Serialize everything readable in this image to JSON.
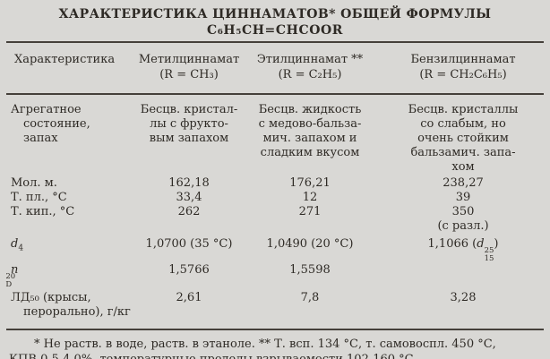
{
  "title": {
    "line1": "ХАРАКТЕРИСТИКА ЦИННАМАТОВ* ОБЩЕЙ ФОРМУЛЫ",
    "line2": "C₆H₅CH=CHCOOR"
  },
  "table": {
    "header": {
      "characteristic": "Характеристика",
      "cols": [
        {
          "name": "Метилциннамат",
          "r": "(R = CH₃)"
        },
        {
          "name": "Этилциннамат **",
          "r": "(R = C₂H₅)"
        },
        {
          "name": "Бензилциннамат",
          "r": "(R = CH₂C₆H₅)"
        }
      ]
    },
    "state_row": {
      "label": "Агрегатное\nсостояние,\nзапах",
      "methyl": "Бесцв. кристал-\nлы с фрукто-\nвым запахом",
      "ethyl": "Бесцв. жидкость\nс медово-бальза-\nмич. запахом и\nсладким вкусом",
      "benzyl": "Бесцв. кристаллы\nсо слабым, но\nочень стойким\nбальзамич. запа-\nхом"
    },
    "mol_row": {
      "label": "Мол. м.",
      "methyl": "162,18",
      "ethyl": "176,21",
      "benzyl": "238,27"
    },
    "tpl_row": {
      "label": "Т. пл., °С",
      "methyl": "33,4",
      "ethyl": "12",
      "benzyl": "39"
    },
    "tkip_row": {
      "label": "Т. кип., °С",
      "methyl": "262",
      "ethyl": "271",
      "benzyl": "350\n(с разл.)"
    },
    "d_row": {
      "label_base": "d",
      "label_sub": "4",
      "methyl": "1,0700 (35 °С)",
      "ethyl": "1,0490 (20 °С)",
      "benzyl_prefix": "1,1066 (",
      "benzyl_base": "d",
      "benzyl_sup": "25",
      "benzyl_sub": "15",
      "benzyl_suffix": ")"
    },
    "n_row": {
      "label_base": "n",
      "label_sup": "20",
      "label_sub": "D",
      "methyl": "1,5766",
      "ethyl": "1,5598",
      "benzyl": ""
    },
    "ld_row": {
      "label": "ЛД₅₀ (крысы,\nперорально), г/кг",
      "methyl": "2,61",
      "ethyl": "7,8",
      "benzyl": "3,28"
    }
  },
  "footnote": "* Не раств. в воде, раств. в этаноле. ** Т. всп. 134 °С, т. самовоспл. 450 °С,\nКПВ 0,5-4,0%, температурные пределы взрываемости 102-160 °С."
}
